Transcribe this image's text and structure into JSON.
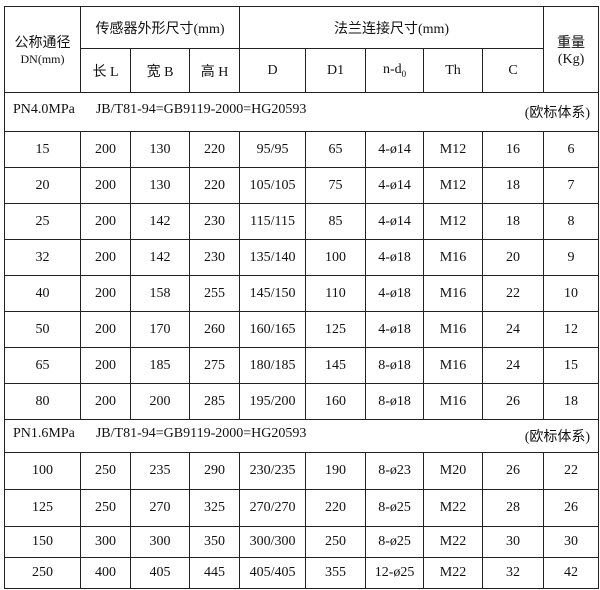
{
  "header": {
    "dn": "公称通径",
    "dn_unit": "DN(mm)",
    "sensor": "传感器外形尺寸(mm)",
    "flange": "法兰连接尺寸(mm)",
    "weight": "重量",
    "weight_unit": "(Kg)",
    "cols": [
      "长 L",
      "宽 B",
      "高 H",
      "D",
      "D1",
      "n-d",
      "Th",
      "C"
    ],
    "sub0": "0"
  },
  "sections": [
    {
      "pressure": "PN4.0MPa",
      "standard": "JB/T81-94=GB9119-2000=HG20593",
      "system": "(欧标体系)",
      "rows": [
        [
          "15",
          "200",
          "130",
          "220",
          "95/95",
          "65",
          "4-ø14",
          "M12",
          "16",
          "6"
        ],
        [
          "20",
          "200",
          "130",
          "220",
          "105/105",
          "75",
          "4-ø14",
          "M12",
          "18",
          "7"
        ],
        [
          "25",
          "200",
          "142",
          "230",
          "115/115",
          "85",
          "4-ø14",
          "M12",
          "18",
          "8"
        ],
        [
          "32",
          "200",
          "142",
          "230",
          "135/140",
          "100",
          "4-ø18",
          "M16",
          "20",
          "9"
        ],
        [
          "40",
          "200",
          "158",
          "255",
          "145/150",
          "110",
          "4-ø18",
          "M16",
          "22",
          "10"
        ],
        [
          "50",
          "200",
          "170",
          "260",
          "160/165",
          "125",
          "4-ø18",
          "M16",
          "24",
          "12"
        ],
        [
          "65",
          "200",
          "185",
          "275",
          "180/185",
          "145",
          "8-ø18",
          "M16",
          "24",
          "15"
        ],
        [
          "80",
          "200",
          "200",
          "285",
          "195/200",
          "160",
          "8-ø18",
          "M16",
          "26",
          "18"
        ]
      ]
    },
    {
      "pressure": "PN1.6MPa",
      "standard": "JB/T81-94=GB9119-2000=HG20593",
      "system": "(欧标体系)",
      "rows": [
        [
          "100",
          "250",
          "235",
          "290",
          "230/235",
          "190",
          "8-ø23",
          "M20",
          "26",
          "22"
        ],
        [
          "125",
          "250",
          "270",
          "325",
          "270/270",
          "220",
          "8-ø25",
          "M22",
          "28",
          "26"
        ],
        [
          "150",
          "300",
          "300",
          "350",
          "300/300",
          "250",
          "8-ø25",
          "M22",
          "30",
          "30"
        ],
        [
          "250",
          "400",
          "405",
          "445",
          "405/405",
          "355",
          "12-ø25",
          "M22",
          "32",
          "42"
        ]
      ]
    }
  ]
}
